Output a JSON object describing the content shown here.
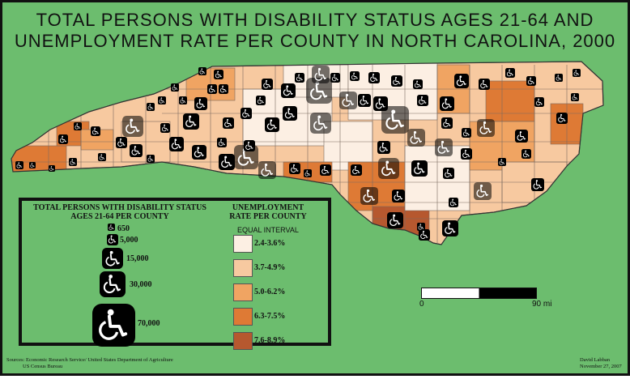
{
  "title_line1": "TOTAL PERSONS WITH DISABILITY STATUS AGES 21-64 AND",
  "title_line2": "UNEMPLOYMENT RATE PER COUNTY IN NORTH CAROLINA, 2000",
  "legend": {
    "symbol_title": "TOTAL PERSONS WITH DISABILITY STATUS AGES 21-64 PER COUNTY",
    "symbols": [
      {
        "value": "650"
      },
      {
        "value": "5,000"
      },
      {
        "value": "15,000"
      },
      {
        "value": "30,000"
      },
      {
        "value": "70,000"
      }
    ],
    "rate_title": "UNEMPLOYMENT RATE PER COUNTY",
    "rate_subtitle": "EQUAL INTERVAL",
    "classes": [
      {
        "label": "2.4-3.6%",
        "color": "#fcefe3"
      },
      {
        "label": "3.7-4.9%",
        "color": "#f7c9a0"
      },
      {
        "label": "5.0-6.2%",
        "color": "#f0a462"
      },
      {
        "label": "6.3-7.5%",
        "color": "#de7a35"
      },
      {
        "label": "7.6-8.9%",
        "color": "#b6582f"
      }
    ]
  },
  "scale": {
    "start": "0",
    "end": "90 mi"
  },
  "sources": "Sources: Economic Research Service/ United States Department of Agriculture",
  "sources2": "US Census Bureau",
  "author": "David Labban",
  "date": "November 27, 2007",
  "map": {
    "background": "#6cbd6e",
    "symbol_color": "#000000",
    "symbol_icon": "wheelchair-icon"
  }
}
